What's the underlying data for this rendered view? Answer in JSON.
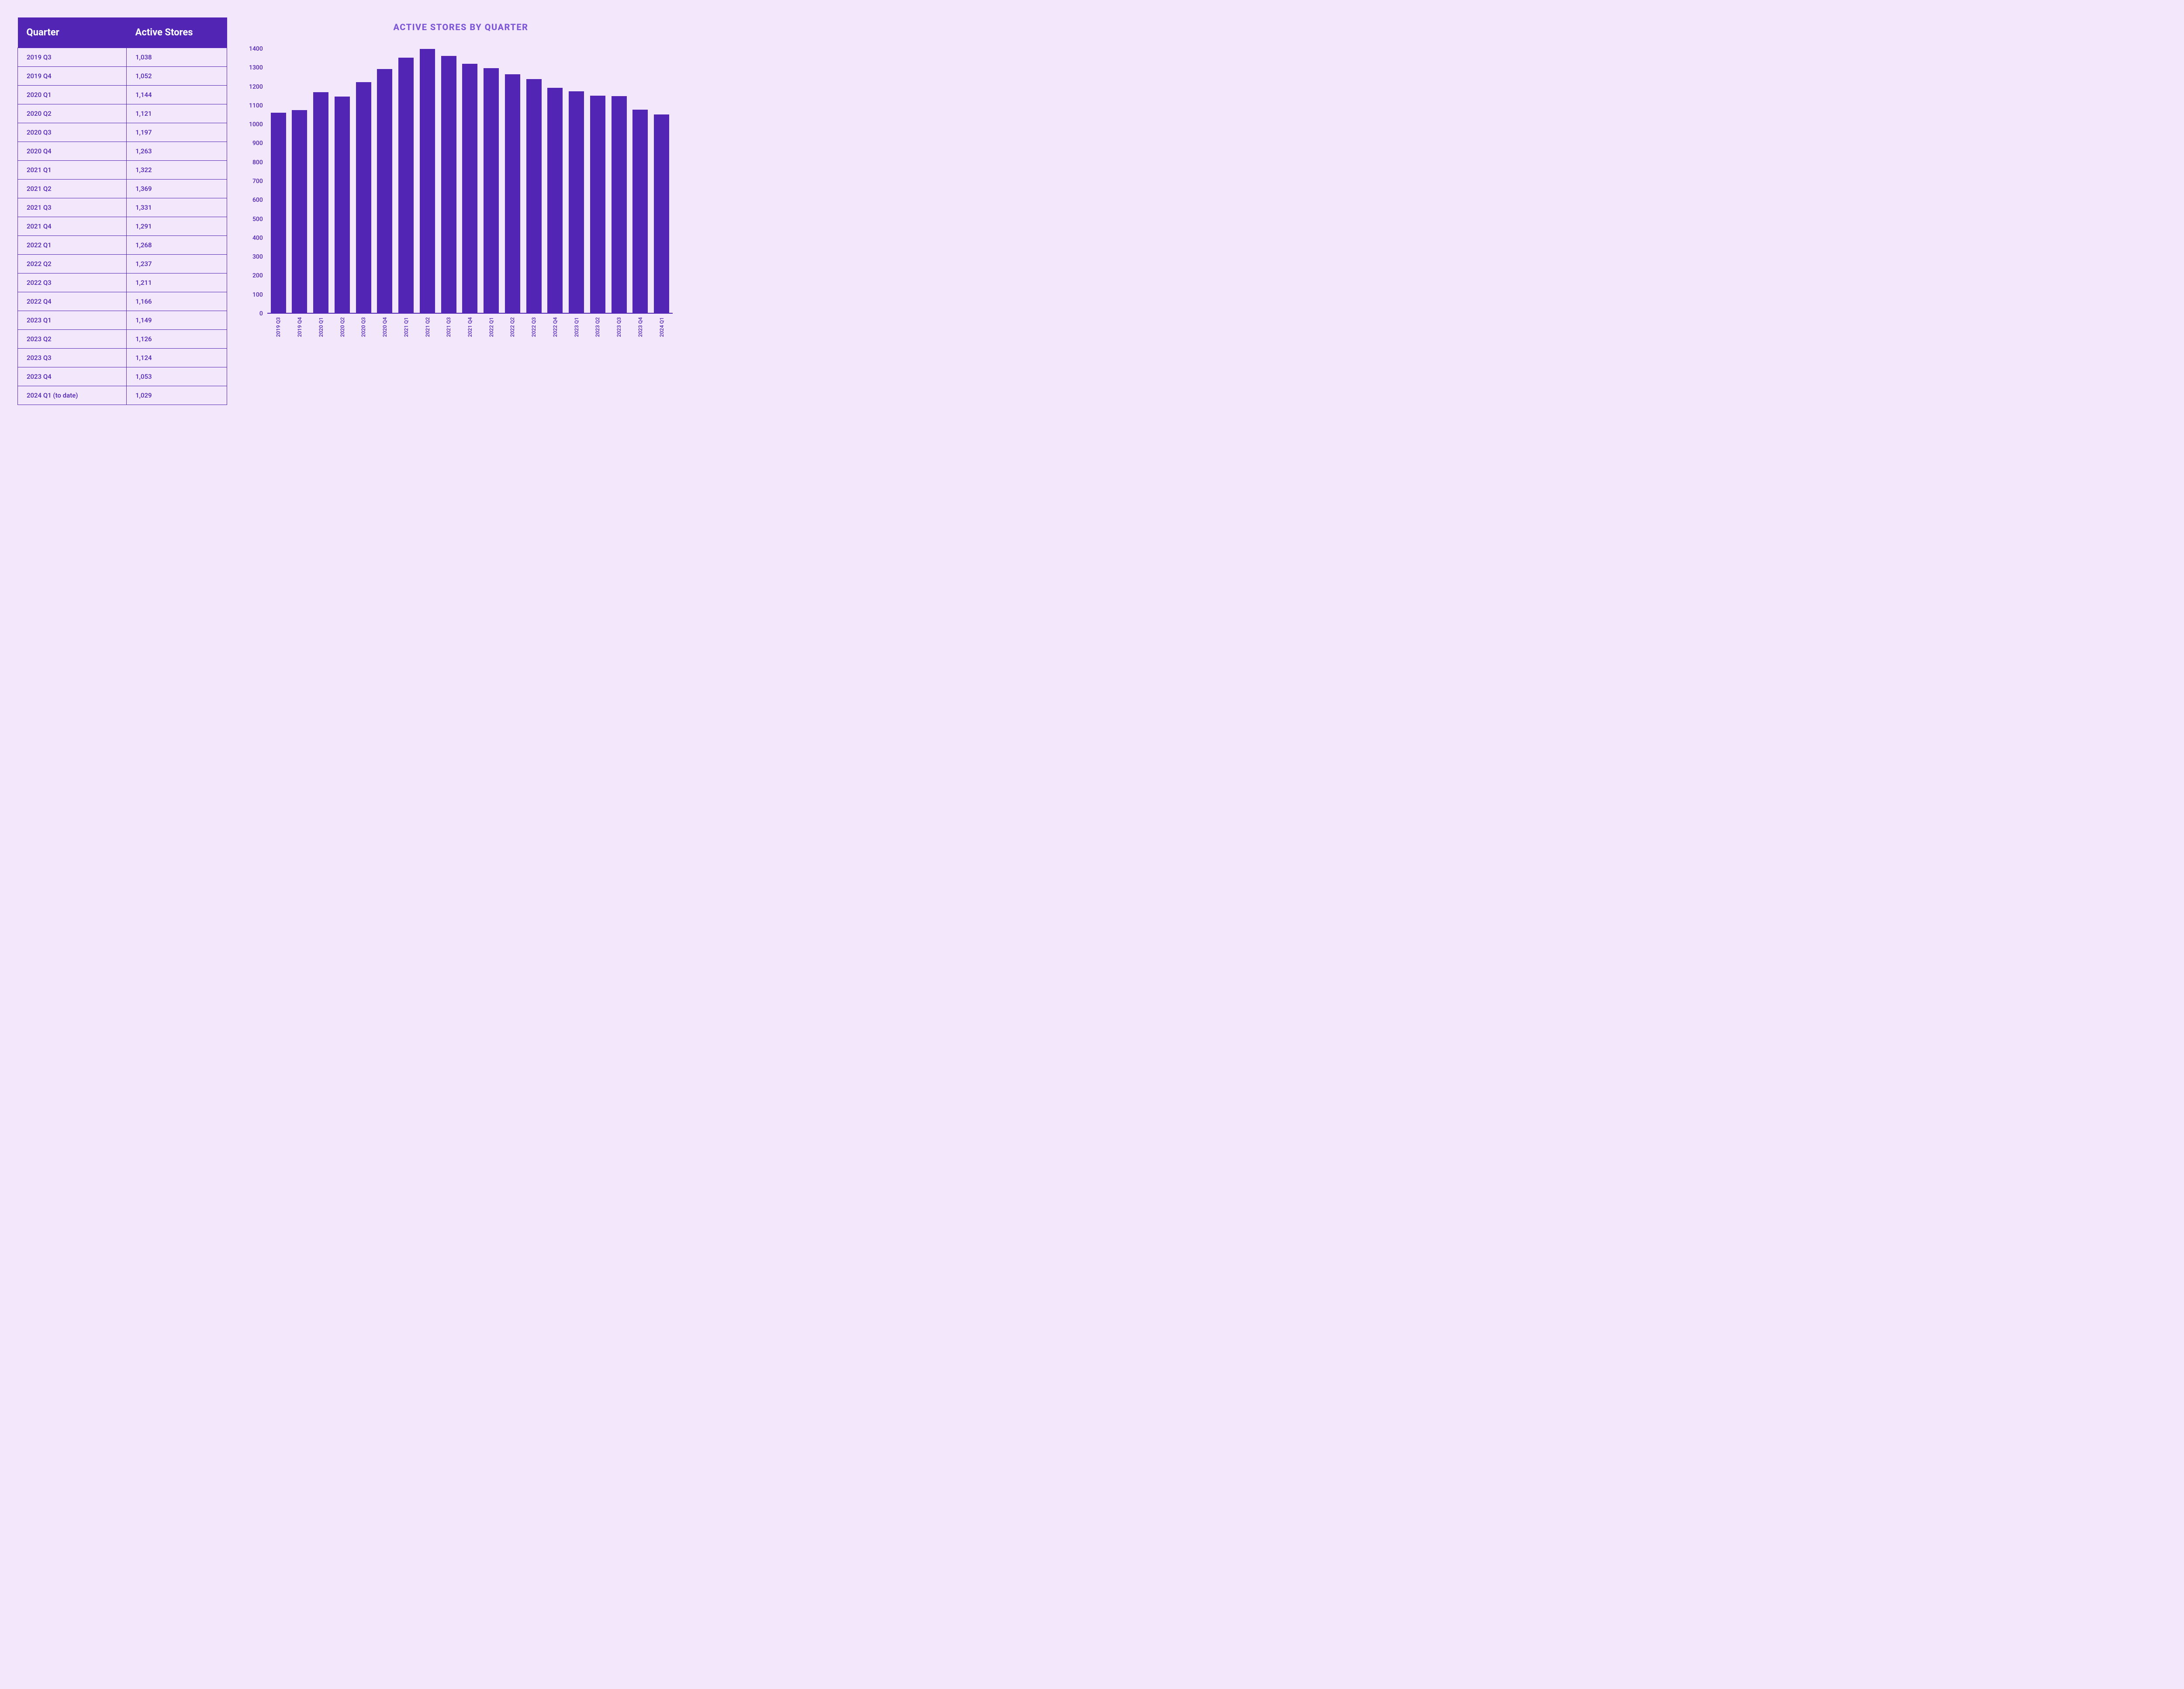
{
  "colors": {
    "page_background": "#f3e8fb",
    "primary": "#5225b5",
    "title": "#7e57d6",
    "header_text": "#ffffff"
  },
  "table": {
    "columns": [
      "Quarter",
      "Active Stores"
    ],
    "rows": [
      [
        "2019 Q3",
        "1,038"
      ],
      [
        "2019 Q4",
        "1,052"
      ],
      [
        "2020 Q1",
        "1,144"
      ],
      [
        "2020 Q2",
        "1,121"
      ],
      [
        "2020 Q3",
        "1,197"
      ],
      [
        "2020 Q4",
        "1,263"
      ],
      [
        "2021 Q1",
        "1,322"
      ],
      [
        "2021 Q2",
        "1,369"
      ],
      [
        "2021 Q3",
        "1,331"
      ],
      [
        "2021 Q4",
        "1,291"
      ],
      [
        "2022 Q1",
        "1,268"
      ],
      [
        "2022 Q2",
        "1,237"
      ],
      [
        "2022 Q3",
        "1,211"
      ],
      [
        "2022 Q4",
        "1,166"
      ],
      [
        "2023 Q1",
        "1,149"
      ],
      [
        "2023 Q2",
        "1,126"
      ],
      [
        "2023 Q3",
        "1,124"
      ],
      [
        "2023 Q4",
        "1,053"
      ],
      [
        "2024 Q1 (to date)",
        "1,029"
      ]
    ]
  },
  "chart": {
    "type": "bar",
    "title": "ACTIVE STORES BY QUARTER",
    "title_fontsize": 20,
    "title_color": "#7e57d6",
    "bar_color": "#5225b5",
    "axis_color": "#5225b5",
    "background_color": "#f3e8fb",
    "ylim": [
      0,
      1400
    ],
    "ytick_step": 100,
    "yticks": [
      1400,
      1300,
      1200,
      1100,
      1000,
      900,
      800,
      700,
      600,
      500,
      400,
      300,
      200,
      100,
      0
    ],
    "bar_width_ratio": 0.82,
    "categories": [
      "2019 Q3",
      "2019 Q4",
      "2020 Q1",
      "2020 Q2",
      "2020 Q3",
      "2020 Q4",
      "2021 Q1",
      "2021 Q2",
      "2021 Q3",
      "2021 Q4",
      "2022 Q1",
      "2022 Q2",
      "2022 Q3",
      "2022 Q4",
      "2023 Q1",
      "2023 Q2",
      "2023 Q3",
      "2023 Q4",
      "2024 Q1"
    ],
    "values": [
      1038,
      1052,
      1144,
      1121,
      1197,
      1263,
      1322,
      1369,
      1331,
      1291,
      1268,
      1237,
      1211,
      1166,
      1149,
      1126,
      1124,
      1053,
      1029
    ]
  }
}
